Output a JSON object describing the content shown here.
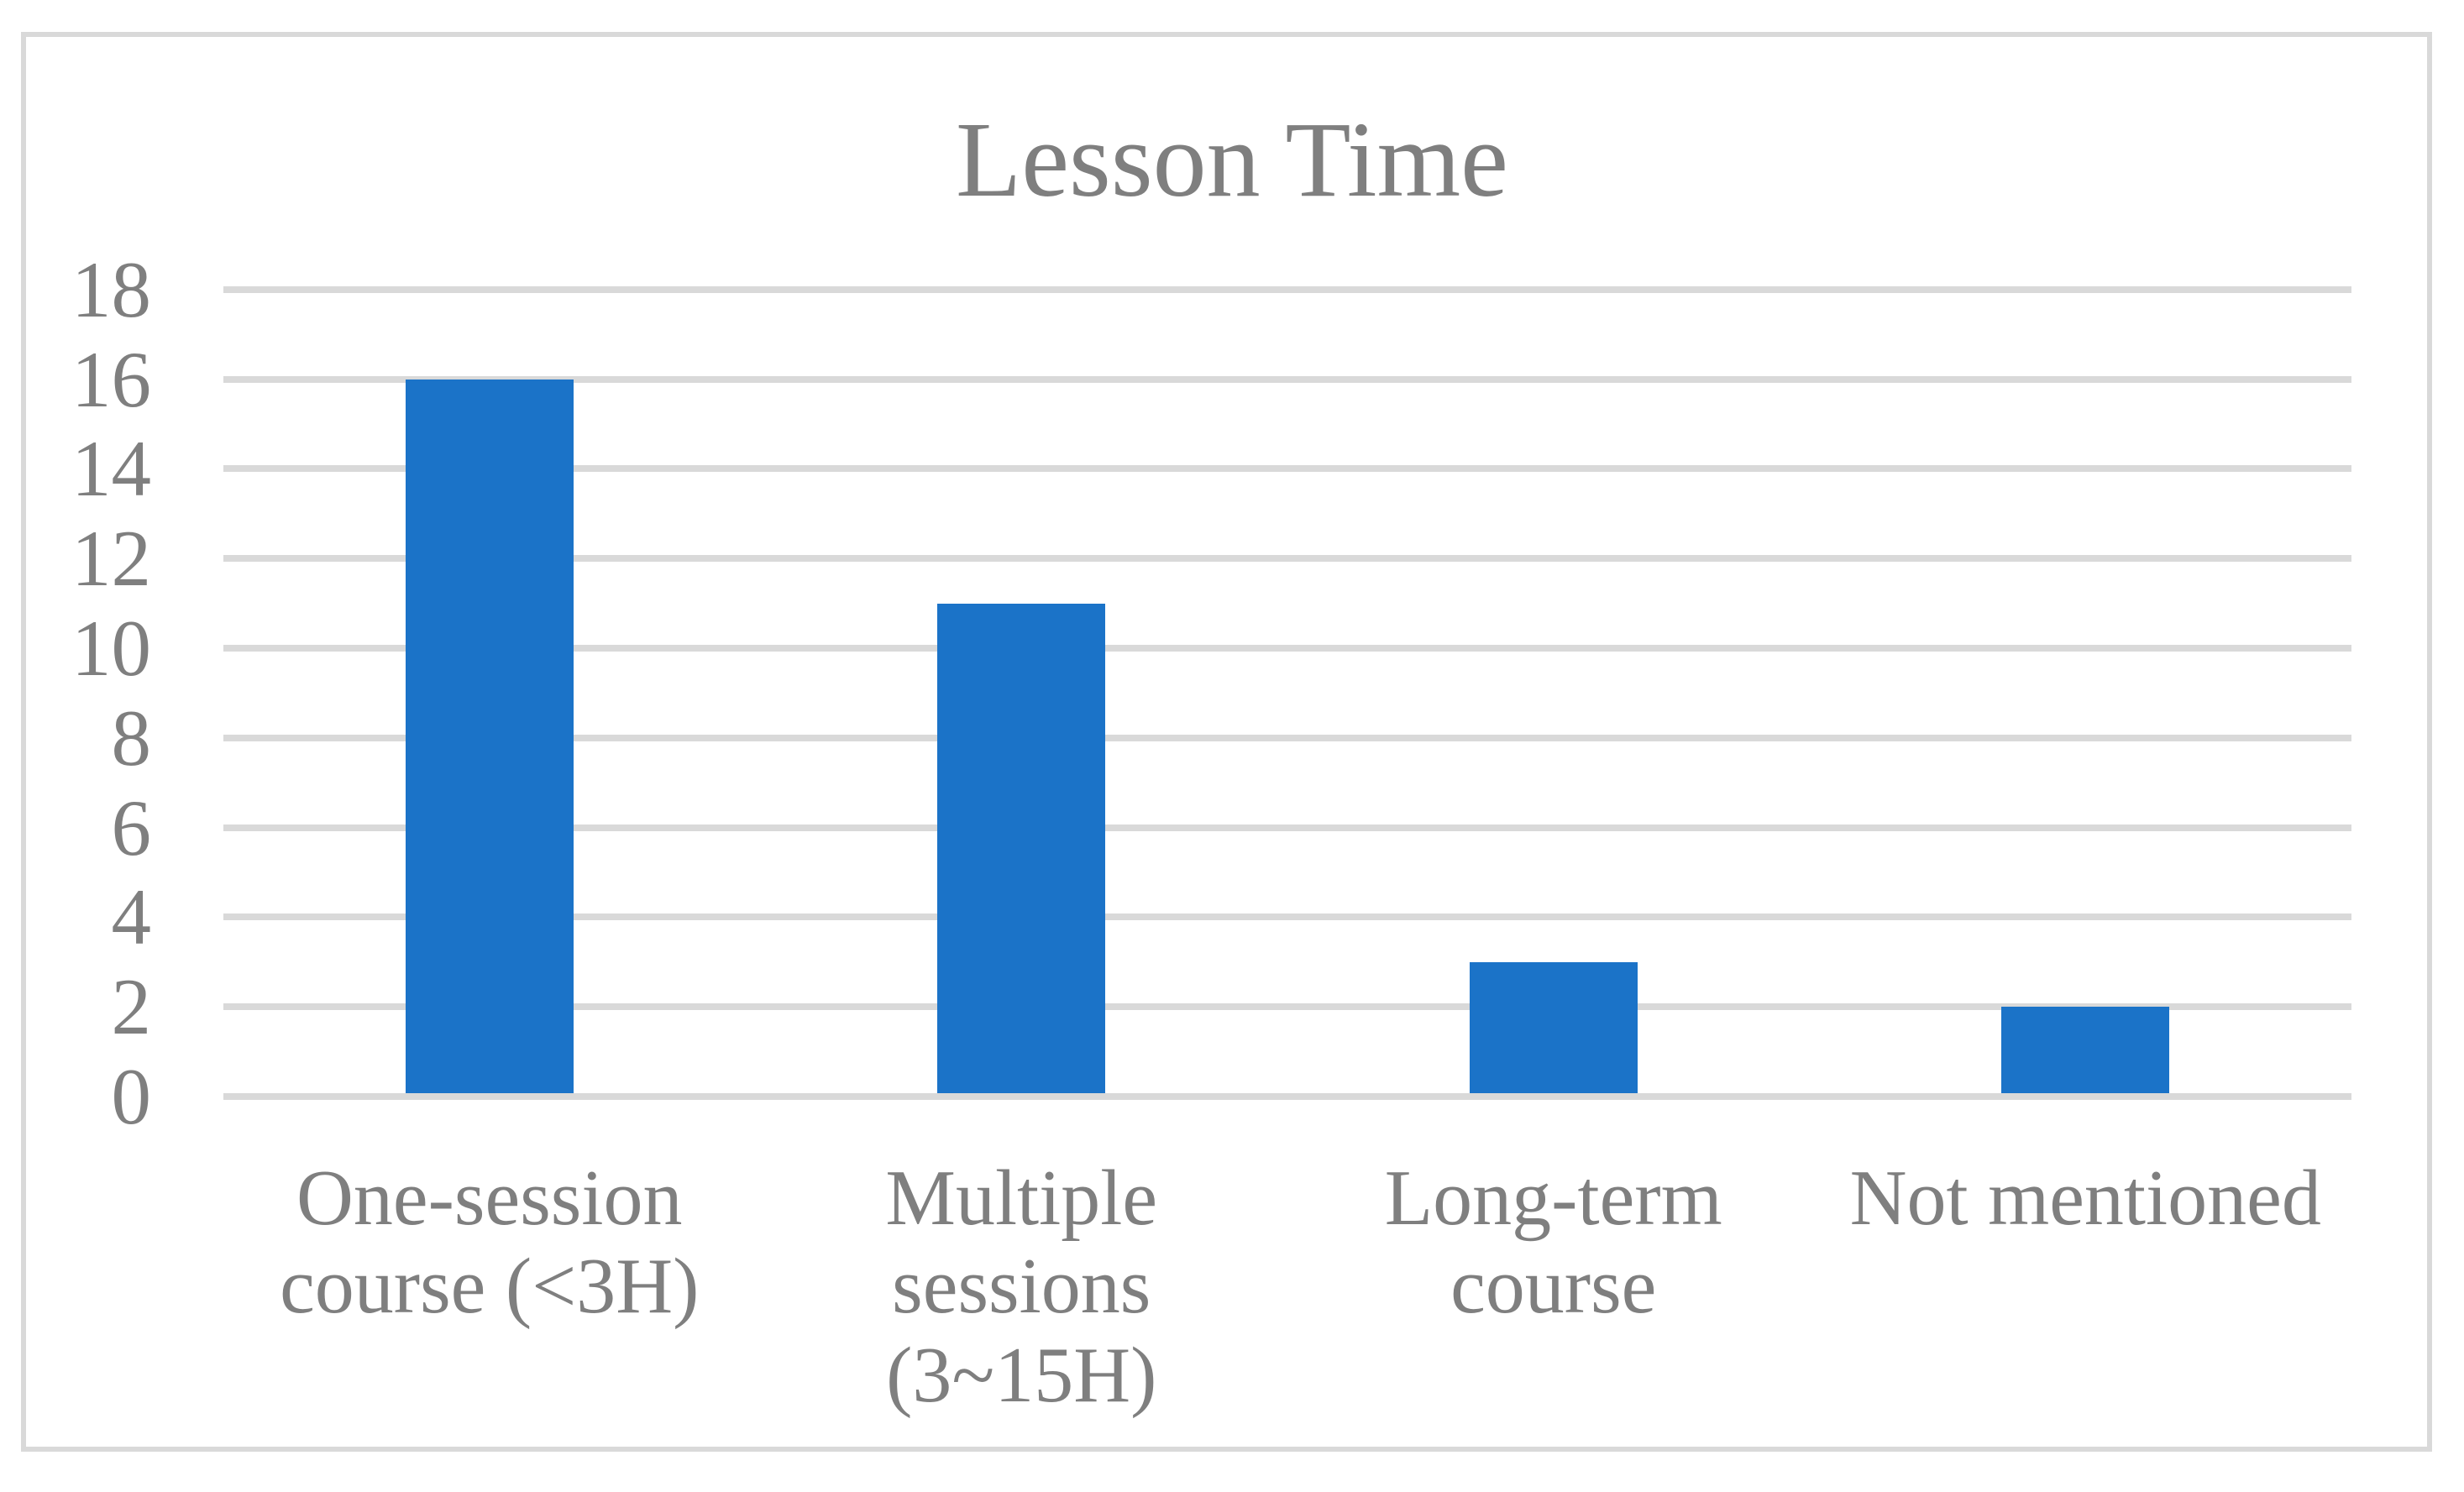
{
  "chart_data": {
    "type": "bar",
    "title": "Lesson Time",
    "categories": [
      "One-session course (<3H)",
      "Multiple sessions (3~15H)",
      "Long-term course",
      "Not mentioned"
    ],
    "values": [
      16,
      11,
      3,
      2
    ],
    "xlabel": "",
    "ylabel": "",
    "ylim": [
      0,
      18
    ],
    "yticks": [
      0,
      2,
      4,
      6,
      8,
      10,
      12,
      14,
      16,
      18
    ],
    "grid": true,
    "legend": "none",
    "colors": {
      "bar": "#1B73C8",
      "gridline": "#D9D9D9",
      "text": "#7F7F7F",
      "frame_border": "#D9D9D9",
      "background": "#FFFFFF"
    }
  }
}
